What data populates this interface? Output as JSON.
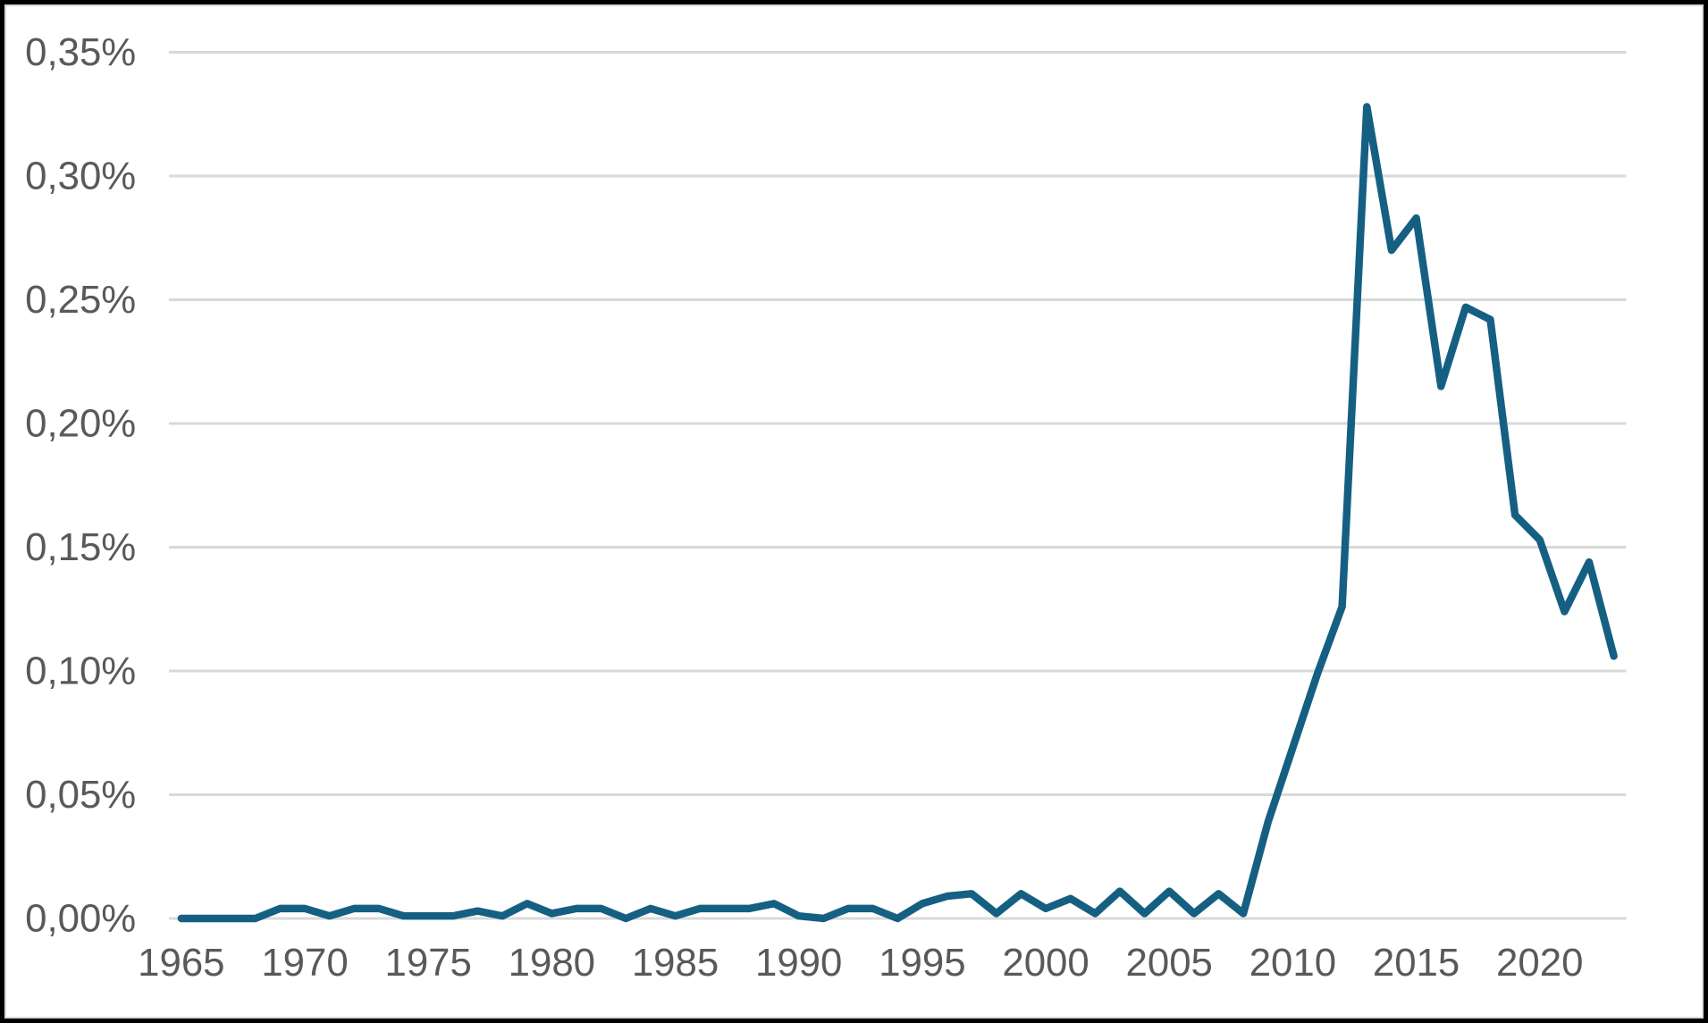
{
  "chart_data": {
    "type": "line",
    "title": "",
    "xlabel": "",
    "ylabel": "",
    "unit": "%",
    "decimal_separator": ",",
    "x": [
      1965,
      1966,
      1967,
      1968,
      1969,
      1970,
      1971,
      1972,
      1973,
      1974,
      1975,
      1976,
      1977,
      1978,
      1979,
      1980,
      1981,
      1982,
      1983,
      1984,
      1985,
      1986,
      1987,
      1988,
      1989,
      1990,
      1991,
      1992,
      1993,
      1994,
      1995,
      1996,
      1997,
      1998,
      1999,
      2000,
      2001,
      2002,
      2003,
      2004,
      2005,
      2006,
      2007,
      2008,
      2009,
      2010,
      2011,
      2012,
      2013,
      2014,
      2015,
      2016,
      2017,
      2018,
      2019,
      2020,
      2021,
      2022,
      2023
    ],
    "values": [
      0.0,
      0.0,
      0.0,
      0.0,
      0.004,
      0.004,
      0.001,
      0.004,
      0.004,
      0.001,
      0.001,
      0.001,
      0.003,
      0.001,
      0.006,
      0.002,
      0.004,
      0.004,
      0.0,
      0.004,
      0.001,
      0.004,
      0.004,
      0.004,
      0.006,
      0.001,
      0.0,
      0.004,
      0.004,
      0.0,
      0.006,
      0.009,
      0.01,
      0.002,
      0.01,
      0.004,
      0.008,
      0.002,
      0.011,
      0.002,
      0.011,
      0.002,
      0.01,
      0.002,
      0.039,
      0.069,
      0.099,
      0.126,
      0.328,
      0.27,
      0.283,
      0.215,
      0.247,
      0.242,
      0.163,
      0.153,
      0.124,
      0.144,
      0.106
    ],
    "ylim": [
      0,
      0.35
    ],
    "ytick_step": 0.05,
    "ytick_labels": [
      "0,00%",
      "0,05%",
      "0,10%",
      "0,15%",
      "0,20%",
      "0,25%",
      "0,30%",
      "0,35%"
    ],
    "xtick_years": [
      1965,
      1970,
      1975,
      1980,
      1985,
      1990,
      1995,
      2000,
      2005,
      2010,
      2015,
      2020
    ],
    "xtick_labels": [
      "1965",
      "1970",
      "1975",
      "1980",
      "1985",
      "1990",
      "1995",
      "2000",
      "2005",
      "2010",
      "2015",
      "2020"
    ],
    "grid": true,
    "legend": false,
    "line_color": "#156082",
    "gridline_color": "#D9D9D9",
    "label_color": "#595959",
    "background_color": "#FFFFFF",
    "border_color": "#000000"
  }
}
